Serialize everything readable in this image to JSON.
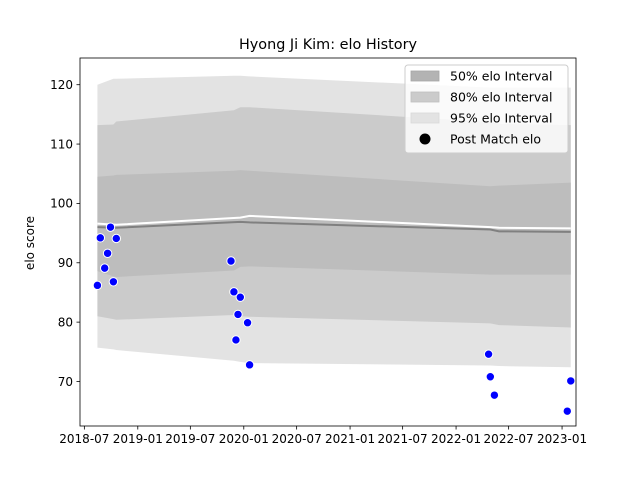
{
  "chart_data": {
    "type": "line",
    "title": "Hyong Ji Kim: elo History",
    "xlabel": "",
    "ylabel": "elo score",
    "xlim": [
      "2018-06-16",
      "2023-02-18"
    ],
    "ylim": [
      62.5,
      124.5
    ],
    "x_ticks": [
      "2018-07",
      "2019-01",
      "2019-07",
      "2020-01",
      "2020-07",
      "2021-01",
      "2021-07",
      "2022-01",
      "2022-07",
      "2023-01"
    ],
    "y_ticks": [
      70,
      80,
      90,
      100,
      110,
      120
    ],
    "grid": false,
    "legend_position": "top-right",
    "bands": [
      {
        "name": "95% elo Interval",
        "color": "#e3e3e3",
        "x": [
          "2018-08-15",
          "2018-10-09",
          "2018-10-19",
          "2019-11-28",
          "2019-12-20",
          "2020-01-21",
          "2022-04-29",
          "2022-05-29",
          "2023-01-31"
        ],
        "upper": [
          120.0,
          121.0,
          121.0,
          121.5,
          121.5,
          121.4,
          119.5,
          119.5,
          119.5
        ],
        "lower": [
          75.7,
          75.4,
          75.3,
          73.5,
          73.3,
          73.1,
          72.7,
          72.6,
          72.4
        ]
      },
      {
        "name": "80% elo Interval",
        "color": "#cbcbcb",
        "x": [
          "2018-08-15",
          "2018-10-09",
          "2018-10-19",
          "2019-11-28",
          "2019-12-20",
          "2020-01-21",
          "2022-04-29",
          "2022-05-29",
          "2023-01-31"
        ],
        "upper": [
          113.2,
          113.3,
          113.8,
          115.7,
          116.2,
          116.2,
          113.7,
          113.4,
          113.2
        ],
        "lower": [
          81.0,
          80.5,
          80.4,
          81.2,
          81.0,
          80.9,
          79.8,
          79.5,
          79.1
        ]
      },
      {
        "name": "50% elo Interval",
        "color": "#bdbdbd",
        "x": [
          "2018-08-15",
          "2018-10-09",
          "2018-10-19",
          "2019-11-28",
          "2019-12-20",
          "2020-01-21",
          "2022-04-29",
          "2022-05-29",
          "2023-01-31"
        ],
        "upper": [
          104.5,
          104.7,
          104.8,
          105.5,
          105.6,
          105.5,
          102.9,
          103.0,
          103.5
        ],
        "lower": [
          88.6,
          87.7,
          87.6,
          88.7,
          89.3,
          89.4,
          88.0,
          88.0,
          88.0
        ]
      }
    ],
    "lines": [
      {
        "role": "upper",
        "color": "#ffffff",
        "x": [
          "2018-08-15",
          "2018-10-19",
          "2019-12-20",
          "2020-01-21",
          "2022-04-29",
          "2022-05-29",
          "2023-01-31"
        ],
        "y": [
          96.6,
          96.4,
          97.6,
          97.9,
          96.0,
          95.9,
          95.8
        ]
      },
      {
        "role": "lower",
        "color": "#808080",
        "x": [
          "2018-08-15",
          "2018-10-19",
          "2019-12-20",
          "2020-01-21",
          "2022-04-29",
          "2022-05-29",
          "2023-01-31"
        ],
        "y": [
          96.0,
          95.9,
          96.9,
          96.8,
          95.6,
          95.3,
          95.2
        ]
      }
    ],
    "series": [
      {
        "name": "Post Match elo",
        "color": "#0000ff",
        "edge_color": "#ffffff",
        "points": [
          {
            "x": "2018-08-15",
            "y": 86.2
          },
          {
            "x": "2018-08-25",
            "y": 94.2
          },
          {
            "x": "2018-09-09",
            "y": 89.1
          },
          {
            "x": "2018-09-19",
            "y": 91.6
          },
          {
            "x": "2018-09-29",
            "y": 96.0
          },
          {
            "x": "2018-10-09",
            "y": 86.8
          },
          {
            "x": "2018-10-19",
            "y": 94.1
          },
          {
            "x": "2019-11-18",
            "y": 90.3
          },
          {
            "x": "2019-11-28",
            "y": 85.1
          },
          {
            "x": "2019-12-05",
            "y": 77.0
          },
          {
            "x": "2019-12-12",
            "y": 81.3
          },
          {
            "x": "2019-12-20",
            "y": 84.2
          },
          {
            "x": "2020-01-14",
            "y": 79.9
          },
          {
            "x": "2020-01-21",
            "y": 72.8
          },
          {
            "x": "2022-04-23",
            "y": 74.6
          },
          {
            "x": "2022-04-29",
            "y": 70.8
          },
          {
            "x": "2022-05-13",
            "y": 67.7
          },
          {
            "x": "2023-01-19",
            "y": 65.0
          },
          {
            "x": "2023-01-31",
            "y": 70.1
          }
        ]
      }
    ],
    "legend": [
      {
        "label": "50% elo Interval",
        "kind": "patch",
        "color": "#b3b3b3",
        "edge": "#a6a6a6"
      },
      {
        "label": "80% elo Interval",
        "kind": "patch",
        "color": "#cbcbcb",
        "edge": "#c0c0c0"
      },
      {
        "label": "95% elo Interval",
        "kind": "patch",
        "color": "#e3e3e3",
        "edge": "#d9d9d9"
      },
      {
        "label": "Post Match elo",
        "kind": "marker",
        "color": "#000000"
      }
    ]
  }
}
